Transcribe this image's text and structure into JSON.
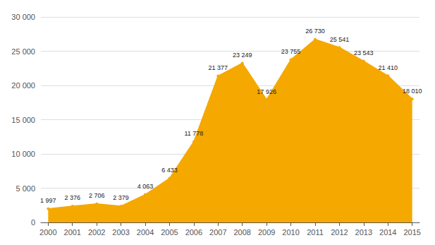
{
  "chart_data": {
    "type": "area",
    "x": [
      2000,
      2001,
      2002,
      2003,
      2004,
      2005,
      2006,
      2007,
      2008,
      2009,
      2010,
      2011,
      2012,
      2013,
      2014,
      2015
    ],
    "values": [
      1997,
      2376,
      2706,
      2379,
      4063,
      6433,
      11778,
      21377,
      23249,
      17926,
      23755,
      26730,
      25541,
      23543,
      21410,
      18010
    ],
    "value_labels": [
      "1 997",
      "2 376",
      "2 706",
      "2 379",
      "4 063",
      "6 433",
      "11 778",
      "21 377",
      "23 249",
      "17 926",
      "23 755",
      "26 730",
      "25 541",
      "23 543",
      "21 410",
      "18 010"
    ],
    "data_labels": true,
    "color": "#F5A800",
    "xlim": [
      1999.7,
      2015.3
    ],
    "xticks": [
      2000,
      2001,
      2002,
      2003,
      2004,
      2005,
      2006,
      2007,
      2008,
      2009,
      2010,
      2011,
      2012,
      2013,
      2014,
      2015
    ],
    "ylim": [
      0,
      30000
    ],
    "yticks": [
      0,
      {
        "value": 5000,
        "label": "5 000"
      },
      {
        "value": 10000,
        "label": "10 000"
      },
      {
        "value": 15000,
        "label": "15 000"
      },
      {
        "value": 20000,
        "label": "20 000"
      },
      {
        "value": 25000,
        "label": "25 000"
      },
      {
        "value": 30000,
        "label": "30 000"
      }
    ],
    "grid": true
  }
}
